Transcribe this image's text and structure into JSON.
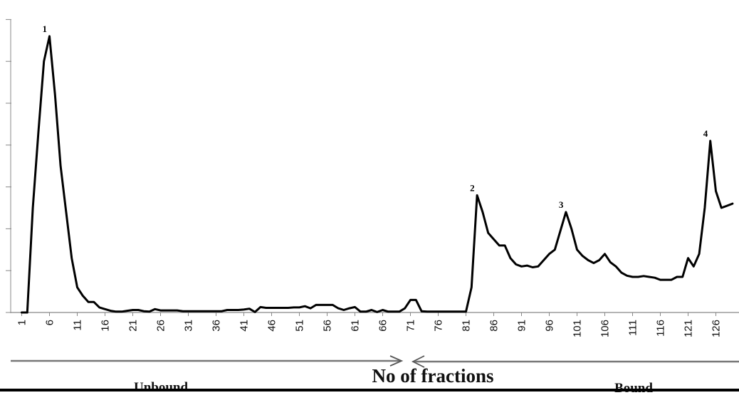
{
  "chart_data": {
    "type": "line",
    "title": "",
    "xlabel": "No of fractions",
    "ylabel": "",
    "xlim": [
      1,
      129
    ],
    "ylim": [
      0,
      66
    ],
    "y_ticks": [
      0,
      10,
      20,
      30,
      40,
      50,
      60,
      70
    ],
    "grid": false,
    "legend": "none",
    "x_tick_labels": [
      "1",
      "6",
      "11",
      "16",
      "21",
      "26",
      "31",
      "36",
      "41",
      "46",
      "51",
      "56",
      "61",
      "66",
      "71",
      "76",
      "81",
      "86",
      "91",
      "96",
      "101",
      "106",
      "111",
      "116",
      "121",
      "126"
    ],
    "x_tick_values": [
      1,
      6,
      11,
      16,
      21,
      26,
      31,
      36,
      41,
      46,
      51,
      56,
      61,
      66,
      71,
      76,
      81,
      86,
      91,
      96,
      101,
      106,
      111,
      116,
      121,
      126
    ],
    "series": [
      {
        "color": "#000000",
        "x": [
          1,
          2,
          3,
          4,
          5,
          6,
          7,
          8,
          9,
          10,
          11,
          12,
          13,
          14,
          15,
          16,
          17,
          18,
          19,
          20,
          21,
          22,
          23,
          24,
          25,
          26,
          27,
          28,
          29,
          30,
          31,
          32,
          33,
          34,
          35,
          36,
          37,
          38,
          39,
          40,
          41,
          42,
          43,
          44,
          45,
          46,
          47,
          48,
          49,
          50,
          51,
          52,
          53,
          54,
          55,
          56,
          57,
          58,
          59,
          60,
          61,
          62,
          63,
          64,
          65,
          66,
          67,
          68,
          69,
          70,
          71,
          72,
          73,
          74,
          75,
          76,
          77,
          78,
          79,
          80,
          81,
          82,
          83,
          84,
          85,
          86,
          87,
          88,
          89,
          90,
          91,
          92,
          93,
          94,
          95,
          96,
          97,
          98,
          99,
          100,
          101,
          102,
          103,
          104,
          105,
          106,
          107,
          108,
          109,
          110,
          111,
          112,
          113,
          114,
          115,
          116,
          117,
          118,
          119,
          120,
          121,
          122,
          123,
          124,
          125,
          126,
          127,
          128,
          129
        ],
        "y": [
          0,
          0,
          25,
          43,
          60,
          66,
          52,
          35,
          24,
          13,
          6,
          4,
          2.5,
          2.5,
          1.2,
          0.8,
          0.4,
          0.2,
          0.2,
          0.4,
          0.6,
          0.6,
          0.3,
          0.2,
          0.8,
          0.5,
          0.5,
          0.5,
          0.5,
          0.3,
          0.3,
          0.3,
          0.3,
          0.3,
          0.3,
          0.3,
          0.3,
          0.6,
          0.6,
          0.6,
          0.7,
          0.9,
          0.1,
          1.3,
          1.1,
          1.1,
          1.1,
          1.1,
          1.1,
          1.2,
          1.2,
          1.5,
          1.0,
          1.8,
          1.8,
          1.8,
          1.8,
          1.0,
          0.6,
          1.0,
          1.3,
          0.2,
          0.2,
          0.6,
          0.1,
          0.6,
          0.2,
          0.2,
          0.2,
          1.0,
          3.0,
          3.0,
          0.3,
          0.2,
          0.2,
          0.2,
          0.2,
          0.2,
          0.2,
          0.2,
          0.2,
          6.0,
          28,
          24,
          19,
          17.5,
          16,
          16,
          13,
          11.5,
          11,
          11.2,
          10.8,
          11,
          12.5,
          14,
          15,
          19.5,
          24,
          20,
          15,
          13.5,
          12.5,
          11.8,
          12.5,
          14,
          12,
          11,
          9.5,
          8.8,
          8.5,
          8.5,
          8.7,
          8.5,
          8.3,
          7.8,
          7.8,
          7.8,
          8.5,
          8.5,
          13,
          11,
          14,
          25,
          41,
          29,
          25,
          25.5,
          26
        ]
      }
    ],
    "annotations": [
      {
        "text": "1",
        "x": 6,
        "y": 66
      },
      {
        "text": "2",
        "x": 83,
        "y": 28
      },
      {
        "text": "3",
        "x": 99,
        "y": 24
      },
      {
        "text": "4",
        "x": 125,
        "y": 41
      }
    ],
    "region_labels": [
      "Unbound",
      "Bound"
    ]
  }
}
